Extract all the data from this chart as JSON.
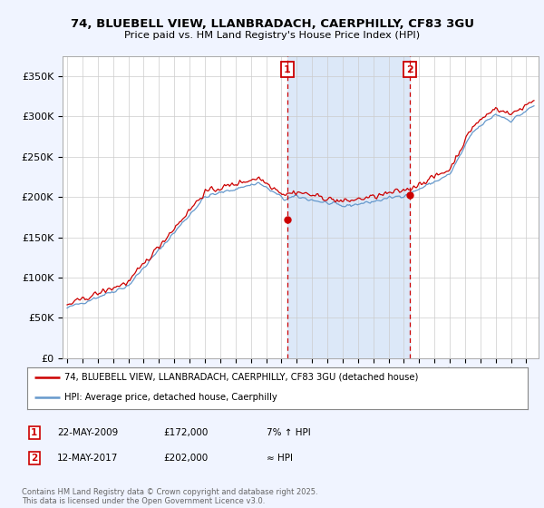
{
  "title_line1": "74, BLUEBELL VIEW, LLANBRADACH, CAERPHILLY, CF83 3GU",
  "title_line2": "Price paid vs. HM Land Registry's House Price Index (HPI)",
  "ylabel_ticks": [
    "£0",
    "£50K",
    "£100K",
    "£150K",
    "£200K",
    "£250K",
    "£300K",
    "£350K"
  ],
  "ytick_vals": [
    0,
    50000,
    100000,
    150000,
    200000,
    250000,
    300000,
    350000
  ],
  "ylim": [
    0,
    375000
  ],
  "sale1_date": "22-MAY-2009",
  "sale1_price": 172000,
  "sale1_note": "7% ↑ HPI",
  "sale1_year": 2009.38,
  "sale2_date": "12-MAY-2017",
  "sale2_price": 202000,
  "sale2_note": "≈ HPI",
  "sale2_year": 2017.36,
  "legend_label_red": "74, BLUEBELL VIEW, LLANBRADACH, CAERPHILLY, CF83 3GU (detached house)",
  "legend_label_blue": "HPI: Average price, detached house, Caerphilly",
  "copyright_text": "Contains HM Land Registry data © Crown copyright and database right 2025.\nThis data is licensed under the Open Government Licence v3.0.",
  "fig_bg": "#f0f4ff",
  "plot_bg": "#ffffff",
  "red_color": "#cc0000",
  "blue_color": "#6699cc",
  "span_color": "#dce8f8"
}
